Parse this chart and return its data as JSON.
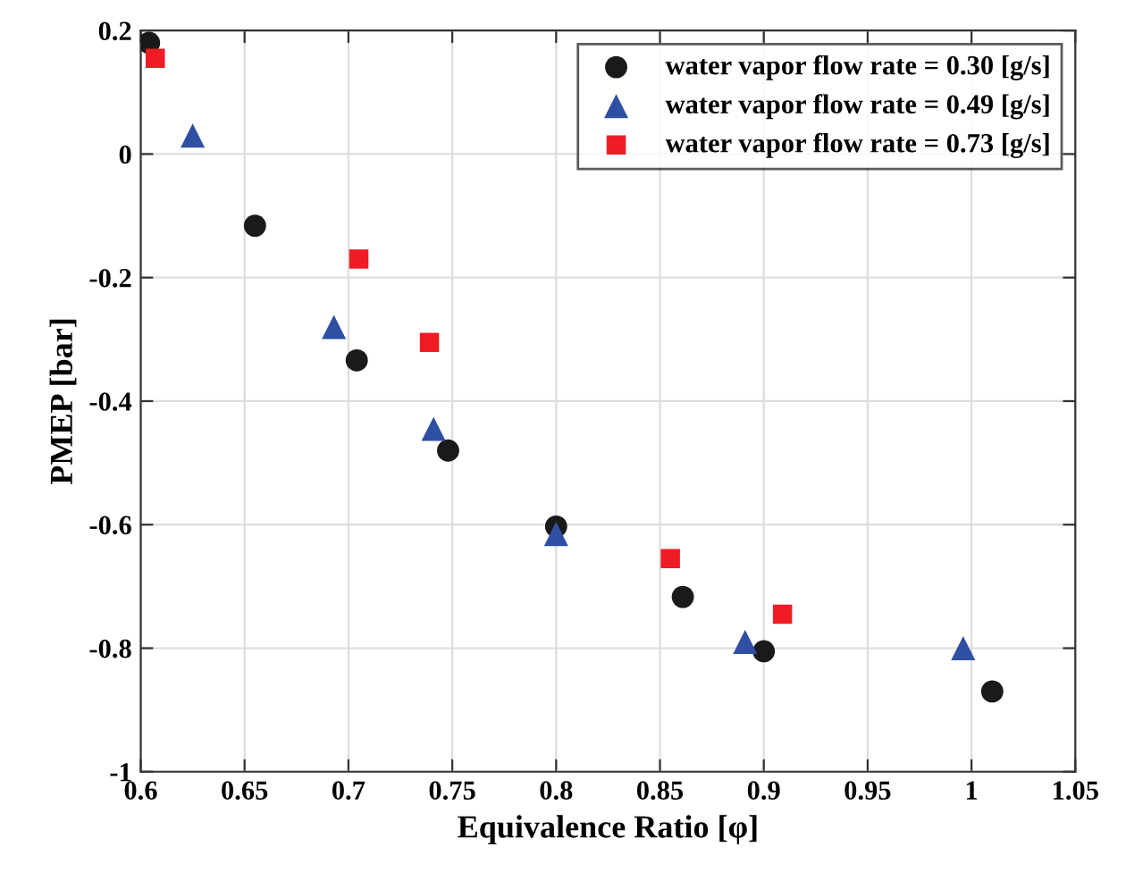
{
  "chart_data": {
    "type": "scatter",
    "xlabel": "Equivalence Ratio [φ]",
    "ylabel": "PMEP [bar]",
    "xlim": [
      0.6,
      1.05
    ],
    "xticks": [
      0.6,
      0.65,
      0.7,
      0.75,
      0.8,
      0.85,
      0.9,
      0.95,
      1,
      1.05
    ],
    "ylim": [
      -1,
      0.2
    ],
    "yticks": [
      -1,
      -0.8,
      -0.6,
      -0.4,
      -0.2,
      0,
      0.2
    ],
    "grid": true,
    "legend": "top right",
    "series": [
      {
        "name": "water vapor flow rate = 0.30 [g/s]",
        "color": "#1a1a1a",
        "marker": "circle",
        "x": [
          0.604,
          0.655,
          0.704,
          0.748,
          0.8,
          0.861,
          0.9,
          1.01
        ],
        "values": [
          0.18,
          -0.116,
          -0.334,
          -0.48,
          -0.603,
          -0.717,
          -0.805,
          -0.87
        ]
      },
      {
        "name": "water vapor flow rate = 0.49 [g/s]",
        "color": "#2f4fa3",
        "marker": "triangle",
        "x": [
          0.625,
          0.693,
          0.741,
          0.8,
          0.891,
          0.996
        ],
        "values": [
          0.03,
          -0.28,
          -0.445,
          -0.615,
          -0.79,
          -0.8
        ]
      },
      {
        "name": "water vapor flow rate = 0.73 [g/s]",
        "color": "#ee1c25",
        "marker": "square",
        "x": [
          0.607,
          0.705,
          0.739,
          0.855,
          0.909
        ],
        "values": [
          0.155,
          -0.17,
          -0.305,
          -0.655,
          -0.745
        ]
      }
    ]
  }
}
